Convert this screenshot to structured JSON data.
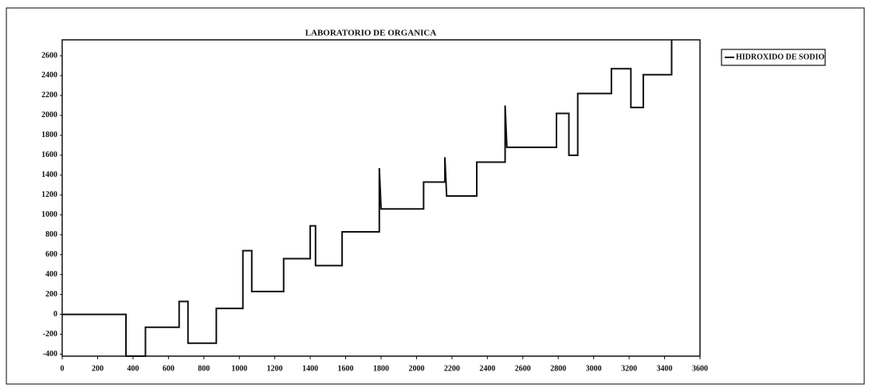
{
  "chart_data": {
    "type": "line",
    "title": "LABORATORIO DE ORGANICA",
    "x": [
      0,
      360,
      360,
      470,
      470,
      660,
      660,
      710,
      710,
      870,
      870,
      1020,
      1020,
      1070,
      1070,
      1250,
      1250,
      1400,
      1400,
      1430,
      1430,
      1580,
      1580,
      1790,
      1790,
      1800,
      2040,
      2040,
      2160,
      2160,
      2170,
      2340,
      2340,
      2500,
      2500,
      2510,
      2790,
      2790,
      2860,
      2860,
      2910,
      2910,
      3100,
      3100,
      3210,
      3210,
      3280,
      3280,
      3440,
      3440
    ],
    "series": [
      {
        "name": "HIDROXIDO DE SODIO",
        "color": "#111111",
        "values": [
          0,
          0,
          -420,
          -420,
          -130,
          -130,
          130,
          130,
          -290,
          -290,
          60,
          60,
          640,
          640,
          230,
          230,
          560,
          560,
          890,
          890,
          490,
          490,
          830,
          830,
          1470,
          1060,
          1060,
          1330,
          1330,
          1580,
          1190,
          1190,
          1530,
          1530,
          2100,
          1680,
          1680,
          2020,
          2020,
          1600,
          1600,
          2220,
          2220,
          2470,
          2470,
          2080,
          2080,
          2410,
          2410,
          2760
        ]
      }
    ],
    "xlim": [
      0,
      3600
    ],
    "ylim": [
      -420,
      2760
    ],
    "xticks": [
      0,
      200,
      400,
      600,
      800,
      1000,
      1200,
      1400,
      1600,
      1800,
      2000,
      2200,
      2400,
      2600,
      2800,
      3000,
      3200,
      3400,
      3600
    ],
    "yticks": [
      -400,
      -200,
      0,
      200,
      400,
      600,
      800,
      1000,
      1200,
      1400,
      1600,
      1800,
      2000,
      2200,
      2400,
      2600
    ],
    "grid": false,
    "legend": "right"
  }
}
